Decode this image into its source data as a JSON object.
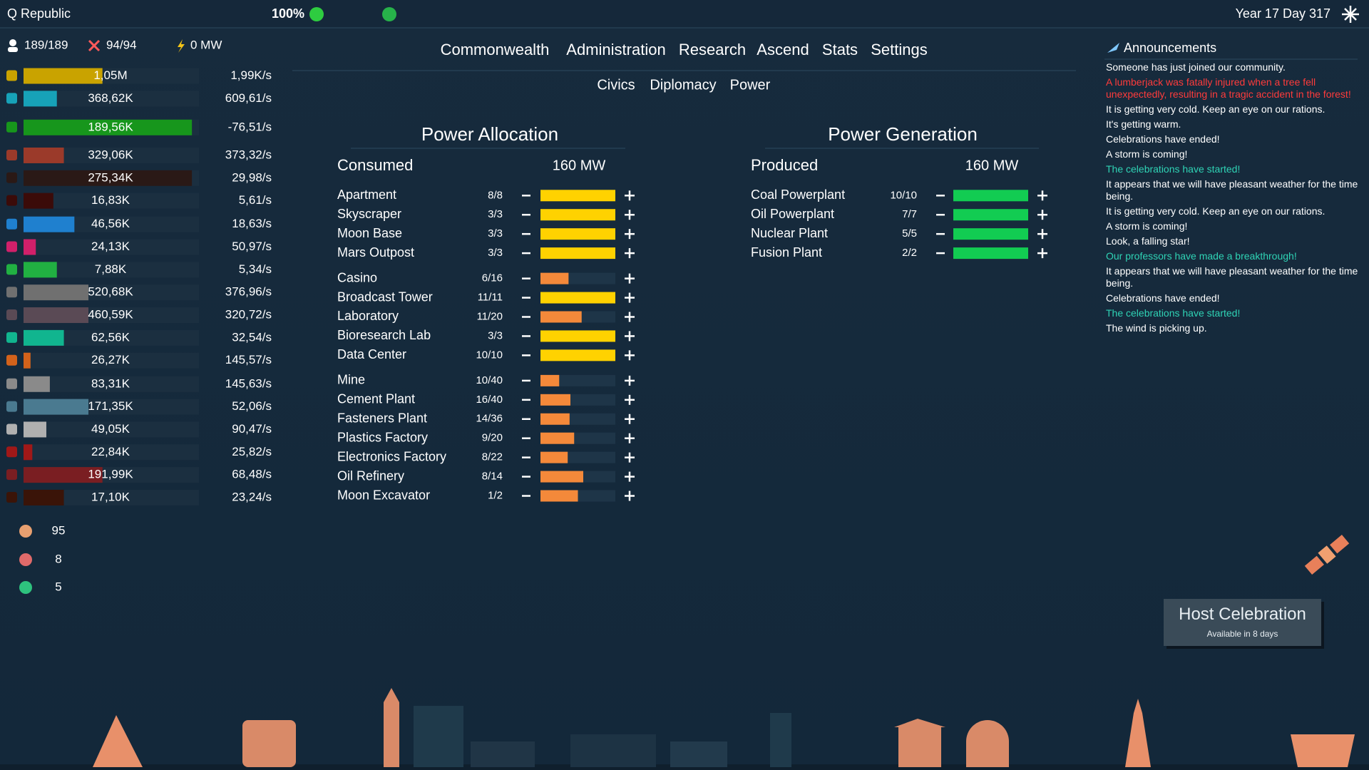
{
  "top_bar": {
    "nation": "Q Republic",
    "happiness": "100%",
    "date": "Year 17 Day 317"
  },
  "stats": {
    "population": "189/189",
    "military": "94/94",
    "power": "0 MW"
  },
  "resources": [
    {
      "amount": "1,05M",
      "rate": "1,99K/s",
      "fill": 0.45,
      "color": "#c9a300"
    },
    {
      "amount": "368,62K",
      "rate": "609,61/s",
      "fill": 0.19,
      "color": "#17a2b8"
    },
    {
      "amount": "189,56K",
      "rate": "-76,51/s",
      "fill": 0.96,
      "color": "#17961c",
      "rate_color": "#e8453c"
    },
    {
      "amount": "329,06K",
      "rate": "373,32/s",
      "fill": 0.23,
      "color": "#9b3a2a"
    },
    {
      "amount": "275,34K",
      "rate": "29,98/s",
      "fill": 0.96,
      "color": "#2a1916"
    },
    {
      "amount": "16,83K",
      "rate": "5,61/s",
      "fill": 0.17,
      "color": "#3b0b09"
    },
    {
      "amount": "46,56K",
      "rate": "18,63/s",
      "fill": 0.29,
      "color": "#1f80cf"
    },
    {
      "amount": "24,13K",
      "rate": "50,97/s",
      "fill": 0.07,
      "color": "#d1206a"
    },
    {
      "amount": "7,88K",
      "rate": "5,34/s",
      "fill": 0.19,
      "color": "#21b042"
    },
    {
      "amount": "520,68K",
      "rate": "376,96/s",
      "fill": 0.37,
      "color": "#707070"
    },
    {
      "amount": "460,59K",
      "rate": "320,72/s",
      "fill": 0.37,
      "color": "#5a4a55"
    },
    {
      "amount": "62,56K",
      "rate": "32,54/s",
      "fill": 0.23,
      "color": "#11b58f"
    },
    {
      "amount": "26,27K",
      "rate": "145,57/s",
      "fill": 0.04,
      "color": "#d2621b"
    },
    {
      "amount": "83,31K",
      "rate": "145,63/s",
      "fill": 0.15,
      "color": "#8a8a8a"
    },
    {
      "amount": "171,35K",
      "rate": "52,06/s",
      "fill": 0.37,
      "color": "#4a7a90"
    },
    {
      "amount": "49,05K",
      "rate": "90,47/s",
      "fill": 0.13,
      "color": "#b0b0b0"
    },
    {
      "amount": "22,84K",
      "rate": "25,82/s",
      "fill": 0.05,
      "color": "#a01818"
    },
    {
      "amount": "191,99K",
      "rate": "68,48/s",
      "fill": 0.45,
      "color": "#7a1e22"
    },
    {
      "amount": "17,10K",
      "rate": "23,24/s",
      "fill": 0.23,
      "color": "#3a1408"
    }
  ],
  "counters": [
    {
      "value": 95,
      "color": "#e8a070"
    },
    {
      "value": 8,
      "color": "#e06a6a"
    },
    {
      "value": 5,
      "color": "#2ec27e"
    }
  ],
  "tabs": {
    "items": [
      "Commonwealth",
      "Administration",
      "Research",
      "Ascend",
      "Stats",
      "Settings"
    ],
    "active": 1
  },
  "subtabs": {
    "items": [
      "Civics",
      "Diplomacy",
      "Power"
    ],
    "active": 2
  },
  "power_allocation": {
    "title": "Power Allocation",
    "summary_label": "Consumed",
    "summary_value": "160 MW",
    "buildings": [
      {
        "name": "Apartment",
        "count": "8/8",
        "color": "#ffd200"
      },
      {
        "name": "Skyscraper",
        "count": "3/3",
        "color": "#ffd200"
      },
      {
        "name": "Moon Base",
        "count": "3/3",
        "color": "#ffd200"
      },
      {
        "name": "Mars Outpost",
        "count": "3/3",
        "color": "#ffd200"
      },
      {
        "name": "Casino",
        "count": "6/16",
        "color": "#f4893a"
      },
      {
        "name": "Broadcast Tower",
        "count": "11/11",
        "color": "#ffd200"
      },
      {
        "name": "Laboratory",
        "count": "11/20",
        "color": "#f4893a"
      },
      {
        "name": "Bioresearch Lab",
        "count": "3/3",
        "color": "#ffd200"
      },
      {
        "name": "Data Center",
        "count": "10/10",
        "color": "#ffd200"
      },
      {
        "name": "Mine",
        "count": "10/40",
        "color": "#f4893a"
      },
      {
        "name": "Cement Plant",
        "count": "16/40",
        "color": "#f4893a"
      },
      {
        "name": "Fasteners Plant",
        "count": "14/36",
        "color": "#f4893a"
      },
      {
        "name": "Plastics Factory",
        "count": "9/20",
        "color": "#f4893a"
      },
      {
        "name": "Electronics Factory",
        "count": "8/22",
        "color": "#f4893a"
      },
      {
        "name": "Oil Refinery",
        "count": "8/14",
        "color": "#f4893a"
      },
      {
        "name": "Moon Excavator",
        "count": "1/2",
        "color": "#f4893a"
      }
    ]
  },
  "power_generation": {
    "title": "Power Generation",
    "summary_label": "Produced",
    "summary_value": "160 MW",
    "buildings": [
      {
        "name": "Coal Powerplant",
        "count": "10/10",
        "color": "#12cc52"
      },
      {
        "name": "Oil Powerplant",
        "count": "7/7",
        "color": "#12cc52"
      },
      {
        "name": "Nuclear Plant",
        "count": "5/5",
        "color": "#12cc52"
      },
      {
        "name": "Fusion Plant",
        "count": "2/2",
        "color": "#12cc52"
      }
    ]
  },
  "announcements": {
    "title": "Announcements",
    "messages": [
      {
        "text": "Someone has just joined our community.",
        "color": "#ffffff"
      },
      {
        "text": "A lumberjack was fatally injured when a tree fell unexpectedly, resulting in a tragic accident in the forest!",
        "color": "#ff3b3b"
      },
      {
        "text": "It is getting very cold. Keep an eye on our rations.",
        "color": "#ffffff"
      },
      {
        "text": "It's getting warm.",
        "color": "#ffffff"
      },
      {
        "text": "Celebrations have ended!",
        "color": "#ffffff"
      },
      {
        "text": "A storm is coming!",
        "color": "#ffffff"
      },
      {
        "text": "The celebrations have started!",
        "color": "#2fd3b5"
      },
      {
        "text": "It appears that we will have pleasant weather for the time being.",
        "color": "#ffffff"
      },
      {
        "text": "It is getting very cold. Keep an eye on our rations.",
        "color": "#ffffff"
      },
      {
        "text": "A storm is coming!",
        "color": "#ffffff"
      },
      {
        "text": "Look, a falling star!",
        "color": "#ffffff"
      },
      {
        "text": "Our professors have made a breakthrough!",
        "color": "#2fd3b5"
      },
      {
        "text": "It appears that we will have pleasant weather for the time being.",
        "color": "#ffffff"
      },
      {
        "text": "Celebrations have ended!",
        "color": "#ffffff"
      },
      {
        "text": "The celebrations have started!",
        "color": "#2fd3b5"
      },
      {
        "text": "The wind is picking up.",
        "color": "#ffffff"
      }
    ]
  },
  "host_button": {
    "label": "Host Celebration",
    "note": "Available in 8 days"
  }
}
